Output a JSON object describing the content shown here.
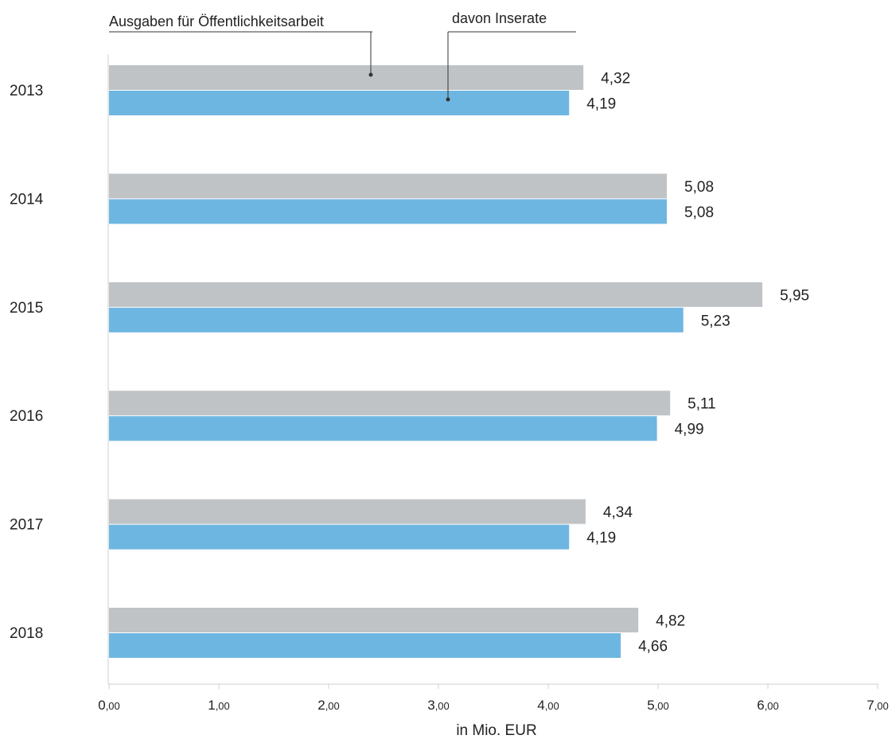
{
  "chart_data": {
    "type": "bar",
    "orientation": "horizontal",
    "categories": [
      "2013",
      "2014",
      "2015",
      "2016",
      "2017",
      "2018"
    ],
    "series": [
      {
        "name": "Ausgaben für Öffentlichkeitsarbeit",
        "values": [
          4.32,
          5.08,
          5.95,
          5.11,
          4.34,
          4.82
        ],
        "labels": [
          "4,32",
          "5,08",
          "5,95",
          "5,11",
          "4,34",
          "4,82"
        ],
        "color": "#c0c3c6"
      },
      {
        "name": "davon Inserate",
        "values": [
          4.19,
          5.08,
          5.23,
          4.99,
          4.19,
          4.66
        ],
        "labels": [
          "4,19",
          "5,08",
          "5,23",
          "4,99",
          "4,19",
          "4,66"
        ],
        "color": "#6eb6e2"
      }
    ],
    "xlabel": "in Mio. EUR",
    "xlim": [
      0,
      7
    ],
    "xticks": [
      {
        "value": 0,
        "int": "0",
        "dec": ",00"
      },
      {
        "value": 1,
        "int": "1",
        "dec": ",00"
      },
      {
        "value": 2,
        "int": "2",
        "dec": ",00"
      },
      {
        "value": 3,
        "int": "3",
        "dec": ",00"
      },
      {
        "value": 4,
        "int": "4",
        "dec": ",00"
      },
      {
        "value": 5,
        "int": "5",
        "dec": ",00"
      },
      {
        "value": 6,
        "int": "6",
        "dec": ",00"
      },
      {
        "value": 7,
        "int": "7",
        "dec": ",00"
      }
    ],
    "grid": false,
    "legend": "top, with leader lines"
  }
}
